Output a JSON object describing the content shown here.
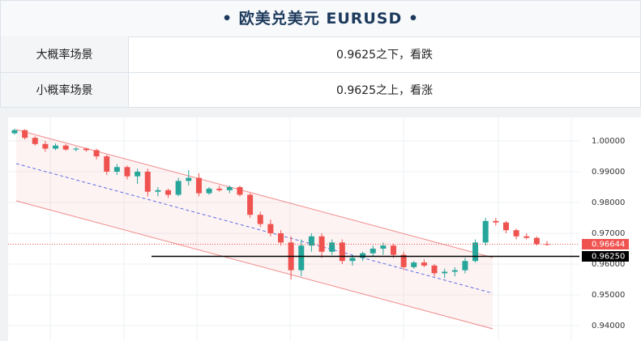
{
  "header": {
    "title": "欧美兑美元 EURUSD"
  },
  "table": {
    "rows": [
      [
        "大概率场景",
        "0.9625之下，看跌"
      ],
      [
        "小概率场景",
        "0.9625之上，看涨"
      ]
    ]
  },
  "chart_data": {
    "type": "candlestick",
    "up_color": "#26a69a",
    "down_color": "#ef5350",
    "candles": [
      [
        1.0025,
        1.004,
        1.002,
        1.0035
      ],
      [
        1.0035,
        1.0038,
        1.0005,
        1.001
      ],
      [
        1.001,
        1.0015,
        0.9985,
        0.999
      ],
      [
        0.999,
        1.0,
        0.9965,
        0.9975
      ],
      [
        0.9975,
        0.9992,
        0.997,
        0.9985
      ],
      [
        0.9985,
        0.999,
        0.9968,
        0.9972
      ],
      [
        0.9972,
        0.998,
        0.9966,
        0.9975
      ],
      [
        0.9975,
        0.9978,
        0.9965,
        0.997
      ],
      [
        0.997,
        0.9975,
        0.994,
        0.995
      ],
      [
        0.995,
        0.9955,
        0.989,
        0.99
      ],
      [
        0.99,
        0.9925,
        0.989,
        0.9915
      ],
      [
        0.9915,
        0.992,
        0.9875,
        0.9885
      ],
      [
        0.9885,
        0.991,
        0.986,
        0.99
      ],
      [
        0.99,
        0.991,
        0.982,
        0.9835
      ],
      [
        0.9835,
        0.985,
        0.982,
        0.984
      ],
      [
        0.984,
        0.9845,
        0.9815,
        0.9825
      ],
      [
        0.9825,
        0.988,
        0.982,
        0.987
      ],
      [
        0.987,
        0.9905,
        0.9855,
        0.988
      ],
      [
        0.988,
        0.9895,
        0.982,
        0.983
      ],
      [
        0.983,
        0.985,
        0.9825,
        0.9845
      ],
      [
        0.9845,
        0.9855,
        0.9835,
        0.984
      ],
      [
        0.984,
        0.9855,
        0.983,
        0.985
      ],
      [
        0.985,
        0.9855,
        0.982,
        0.9825
      ],
      [
        0.9825,
        0.983,
        0.975,
        0.976
      ],
      [
        0.976,
        0.977,
        0.972,
        0.973
      ],
      [
        0.973,
        0.9745,
        0.969,
        0.97
      ],
      [
        0.97,
        0.971,
        0.966,
        0.967
      ],
      [
        0.967,
        0.969,
        0.955,
        0.958
      ],
      [
        0.958,
        0.968,
        0.956,
        0.966
      ],
      [
        0.966,
        0.97,
        0.964,
        0.969
      ],
      [
        0.969,
        0.97,
        0.962,
        0.964
      ],
      [
        0.964,
        0.968,
        0.963,
        0.967
      ],
      [
        0.967,
        0.968,
        0.96,
        0.961
      ],
      [
        0.961,
        0.963,
        0.9595,
        0.962
      ],
      [
        0.962,
        0.964,
        0.961,
        0.9635
      ],
      [
        0.9635,
        0.966,
        0.9625,
        0.965
      ],
      [
        0.965,
        0.967,
        0.963,
        0.966
      ],
      [
        0.966,
        0.9665,
        0.962,
        0.963
      ],
      [
        0.963,
        0.964,
        0.958,
        0.959
      ],
      [
        0.959,
        0.961,
        0.9585,
        0.9605
      ],
      [
        0.9605,
        0.9615,
        0.959,
        0.9595
      ],
      [
        0.9595,
        0.96,
        0.956,
        0.957
      ],
      [
        0.957,
        0.9585,
        0.9555,
        0.9575
      ],
      [
        0.9575,
        0.959,
        0.956,
        0.958
      ],
      [
        0.958,
        0.962,
        0.957,
        0.961
      ],
      [
        0.961,
        0.968,
        0.9605,
        0.967
      ],
      [
        0.967,
        0.975,
        0.966,
        0.974
      ],
      [
        0.974,
        0.975,
        0.9725,
        0.9735
      ],
      [
        0.9735,
        0.974,
        0.97,
        0.971
      ],
      [
        0.971,
        0.9715,
        0.968,
        0.969
      ],
      [
        0.969,
        0.97,
        0.968,
        0.9685
      ],
      [
        0.9685,
        0.969,
        0.966,
        0.9665
      ],
      [
        0.9665,
        0.9675,
        0.966,
        0.96644
      ]
    ],
    "channel": {
      "upper": [
        1.00368,
        0.96211
      ],
      "mid": [
        0.99263,
        0.95053
      ],
      "lower": [
        0.98053,
        0.93895
      ]
    },
    "levels": [
      {
        "value": 0.9625,
        "label": "0.96250",
        "color": "#000000"
      },
      {
        "value": 0.96644,
        "label": "0.96644",
        "color": "#ef5350"
      }
    ],
    "ylim": [
      0.935,
      1.00763
    ],
    "yticks": [
      {
        "value": 1.0,
        "label": "1.00000"
      },
      {
        "value": 0.99,
        "label": "0.99000"
      },
      {
        "value": 0.98,
        "label": "0.98000"
      },
      {
        "value": 0.97,
        "label": "0.97000"
      },
      {
        "value": 0.96,
        "label": "0.96000"
      },
      {
        "value": 0.95,
        "label": "0.95000"
      },
      {
        "value": 0.94,
        "label": "0.94000"
      }
    ],
    "grid": true
  }
}
